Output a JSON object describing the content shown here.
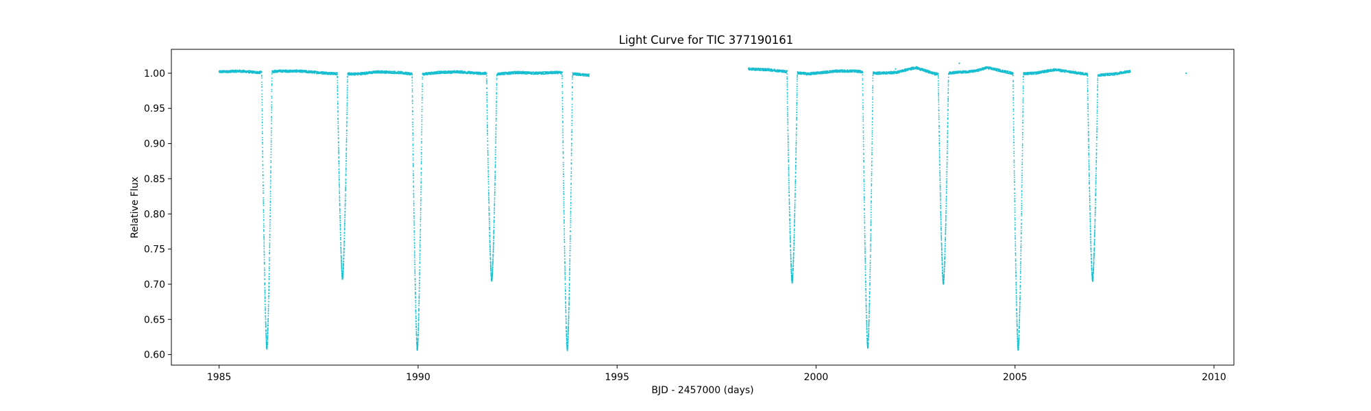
{
  "chart_data": {
    "type": "scatter",
    "title": "Light Curve for TIC 377190161",
    "xlabel": "BJD - 2457000 (days)",
    "ylabel": "Relative Flux",
    "xlim": [
      1983.8,
      2010.5
    ],
    "ylim": [
      0.585,
      1.034
    ],
    "xticks": [
      1985,
      1990,
      1995,
      2000,
      2005,
      2010
    ],
    "yticks": [
      0.6,
      0.65,
      0.7,
      0.75,
      0.8,
      0.85,
      0.9,
      0.95,
      1.0
    ],
    "ytick_labels": [
      "0.60",
      "0.65",
      "0.70",
      "0.75",
      "0.80",
      "0.85",
      "0.90",
      "0.95",
      "1.00"
    ],
    "grid": false,
    "point_color": "#17becf",
    "segments": [
      {
        "start": 1985.0,
        "end": 1994.3
      },
      {
        "start": 1998.3,
        "end": 2007.9
      }
    ],
    "baseline": [
      [
        1985.0,
        1.002
      ],
      [
        1985.5,
        1.003
      ],
      [
        1986.0,
        1.001
      ],
      [
        1986.5,
        1.003
      ],
      [
        1987.0,
        1.003
      ],
      [
        1987.5,
        1.001
      ],
      [
        1988.0,
        0.999
      ],
      [
        1988.5,
        0.999
      ],
      [
        1989.0,
        1.002
      ],
      [
        1989.5,
        1.001
      ],
      [
        1990.0,
        0.998
      ],
      [
        1990.5,
        1.001
      ],
      [
        1991.0,
        1.002
      ],
      [
        1991.5,
        1.0
      ],
      [
        1992.0,
        0.999
      ],
      [
        1992.5,
        1.001
      ],
      [
        1993.0,
        1.0
      ],
      [
        1993.5,
        1.001
      ],
      [
        1994.3,
        0.997
      ],
      [
        1998.3,
        1.006
      ],
      [
        1998.8,
        1.005
      ],
      [
        1999.3,
        1.002
      ],
      [
        1999.8,
        0.999
      ],
      [
        2000.5,
        1.003
      ],
      [
        2001.0,
        1.003
      ],
      [
        2001.5,
        1.0
      ],
      [
        2002.0,
        1.001
      ],
      [
        2002.5,
        1.008
      ],
      [
        2003.0,
        0.999
      ],
      [
        2003.5,
        1.001
      ],
      [
        2004.0,
        1.003
      ],
      [
        2004.3,
        1.008
      ],
      [
        2005.0,
        0.999
      ],
      [
        2005.5,
        1.0
      ],
      [
        2006.0,
        1.005
      ],
      [
        2006.5,
        1.001
      ],
      [
        2007.0,
        0.997
      ],
      [
        2007.5,
        0.999
      ],
      [
        2007.9,
        1.003
      ]
    ],
    "eclipses": [
      {
        "center": 1986.2,
        "depth": 0.608,
        "half_width": 0.13
      },
      {
        "center": 1988.1,
        "depth": 0.708,
        "half_width": 0.13
      },
      {
        "center": 1989.98,
        "depth": 0.607,
        "half_width": 0.13
      },
      {
        "center": 1991.85,
        "depth": 0.705,
        "half_width": 0.13
      },
      {
        "center": 1993.75,
        "depth": 0.607,
        "half_width": 0.13
      },
      {
        "center": 1999.4,
        "depth": 0.703,
        "half_width": 0.13
      },
      {
        "center": 2001.3,
        "depth": 0.61,
        "half_width": 0.13
      },
      {
        "center": 2003.2,
        "depth": 0.701,
        "half_width": 0.13
      },
      {
        "center": 2005.08,
        "depth": 0.607,
        "half_width": 0.13
      },
      {
        "center": 2006.95,
        "depth": 0.705,
        "half_width": 0.13
      }
    ],
    "outliers": [
      [
        2002.0,
        1.006
      ],
      [
        2003.6,
        1.014
      ],
      [
        2009.3,
        1.0
      ]
    ]
  }
}
